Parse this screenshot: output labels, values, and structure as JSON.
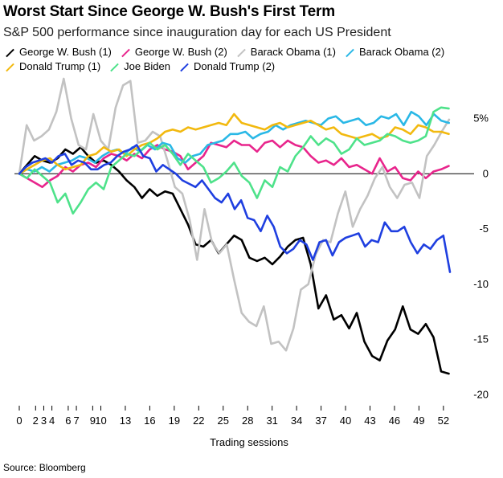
{
  "title": "Worst Start Since George W. Bush's First Term",
  "subtitle": "S&P 500 performance since inauguration day for each US President",
  "source": "Source: Bloomberg",
  "chart_data": {
    "type": "line",
    "xlabel": "Trading sessions",
    "ylabel": "",
    "xlim": [
      0,
      53
    ],
    "ylim": [
      -21,
      7
    ],
    "x_ticks": [
      0,
      2,
      3,
      4,
      6,
      7,
      9,
      10,
      13,
      16,
      19,
      22,
      25,
      28,
      31,
      34,
      37,
      40,
      43,
      46,
      49,
      52
    ],
    "y_ticks": [
      {
        "value": 5,
        "label": "5%"
      },
      {
        "value": 0,
        "label": "0"
      },
      {
        "value": -5,
        "label": "-5"
      },
      {
        "value": -10,
        "label": "-10"
      },
      {
        "value": -15,
        "label": "-15"
      },
      {
        "value": -20,
        "label": "-20"
      }
    ],
    "grid": "zero-line only",
    "legend": "top",
    "series": [
      {
        "name": "George W. Bush (1)",
        "color": "#000000",
        "values": [
          0,
          0.8,
          1.6,
          1.2,
          1.0,
          1.4,
          2.2,
          1.8,
          2.4,
          1.6,
          1.0,
          1.2,
          0.8,
          0.2,
          -0.6,
          -1.2,
          -2.2,
          -1.4,
          -2.0,
          -1.6,
          -1.8,
          -3.2,
          -4.6,
          -6.4,
          -6.6,
          -6.0,
          -7.2,
          -6.4,
          -5.6,
          -6.0,
          -7.6,
          -7.9,
          -7.6,
          -8.2,
          -7.5,
          -6.6,
          -6.0,
          -5.8,
          -8.2,
          -12.2,
          -11.0,
          -13.2,
          -12.8,
          -14.0,
          -12.6,
          -15.2,
          -16.5,
          -16.9,
          -15.1,
          -14.1,
          -12.0,
          -14.1,
          -14.5,
          -13.6,
          -14.8,
          -17.9,
          -18.1
        ]
      },
      {
        "name": "George W. Bush (2)",
        "color": "#e8258c",
        "values": [
          0,
          -0.4,
          -0.8,
          -1.2,
          -0.6,
          -0.2,
          0.6,
          0.2,
          0.8,
          1.0,
          0.6,
          1.4,
          1.8,
          1.6,
          1.2,
          1.8,
          1.4,
          2.2,
          2.6,
          2.2,
          2.0,
          1.6,
          0.4,
          1.0,
          1.6,
          2.8,
          2.6,
          2.4,
          3.0,
          2.6,
          2.6,
          2.0,
          2.8,
          3.0,
          2.4,
          3.0,
          2.6,
          2.4,
          1.6,
          1.0,
          1.2,
          0.8,
          1.4,
          0.6,
          0.8,
          0.4,
          0.0,
          1.4,
          0.2,
          0.6,
          -0.4,
          -0.6,
          0.2,
          -0.4,
          0.2,
          0.4,
          0.7
        ]
      },
      {
        "name": "Barack Obama (1)",
        "color": "#c2c2c2",
        "values": [
          0,
          4.4,
          3.0,
          3.4,
          4.0,
          5.6,
          8.6,
          5.0,
          2.6,
          2.2,
          5.4,
          3.0,
          2.2,
          6.0,
          8.0,
          8.4,
          2.8,
          3.0,
          3.8,
          3.4,
          1.2,
          -1.2,
          -1.8,
          -4.2,
          -7.8,
          -3.2,
          -6.2,
          -7.2,
          -6.4,
          -9.6,
          -12.6,
          -13.4,
          -13.8,
          -12.0,
          -15.4,
          -15.2,
          -16.0,
          -14.0,
          -10.5,
          -10.0,
          -7.3,
          -6.0,
          -6.2,
          -3.6,
          -1.6,
          -4.8,
          -3.2,
          -2.0,
          -0.4,
          0.6,
          -1.2,
          -2.2,
          -1.0,
          -0.8,
          -2.2,
          1.6,
          2.6,
          3.8,
          4.9
        ]
      },
      {
        "name": "Barack Obama (2)",
        "color": "#2ab8e6",
        "values": [
          0,
          0.4,
          0.2,
          0.6,
          0.2,
          0.8,
          1.0,
          1.2,
          1.6,
          1.4,
          1.0,
          1.6,
          2.0,
          2.2,
          1.8,
          2.4,
          2.0,
          2.6,
          2.2,
          2.8,
          2.6,
          1.4,
          1.0,
          1.6,
          1.8,
          2.6,
          2.8,
          3.0,
          3.6,
          3.6,
          3.8,
          3.2,
          3.6,
          3.8,
          4.4,
          4.0,
          4.4,
          4.6,
          4.8,
          4.6,
          4.4,
          5.0,
          5.2,
          4.6,
          4.8,
          5.0,
          4.4,
          4.6,
          5.2,
          5.0,
          5.4,
          4.4,
          5.6,
          5.2,
          4.4,
          5.4,
          4.8,
          4.6
        ]
      },
      {
        "name": "Donald Trump (1)",
        "color": "#f2b90f",
        "values": [
          0,
          0.4,
          0.8,
          1.2,
          1.4,
          0.8,
          0.4,
          0.6,
          0.8,
          1.6,
          1.8,
          2.4,
          2.0,
          2.2,
          1.6,
          2.2,
          2.6,
          2.8,
          3.2,
          3.8,
          4.0,
          3.8,
          4.2,
          4.0,
          4.2,
          4.4,
          4.6,
          4.4,
          5.4,
          4.6,
          4.4,
          4.2,
          4.0,
          4.4,
          4.6,
          4.2,
          4.4,
          4.6,
          4.8,
          4.4,
          4.0,
          4.2,
          3.6,
          3.4,
          3.2,
          3.4,
          3.6,
          3.2,
          3.4,
          4.2,
          4.0,
          3.6,
          4.4,
          4.2,
          3.8,
          3.8,
          3.6
        ]
      },
      {
        "name": "Joe Biden",
        "color": "#4ee28a",
        "values": [
          0,
          -0.4,
          0.4,
          -0.2,
          -0.8,
          -2.6,
          -1.8,
          -3.6,
          -2.6,
          -1.4,
          -0.8,
          -1.4,
          0.6,
          1.2,
          1.8,
          1.6,
          2.2,
          2.8,
          2.2,
          2.6,
          1.8,
          0.8,
          1.8,
          1.2,
          0.6,
          -0.8,
          -0.4,
          0.2,
          1.0,
          -0.2,
          -0.8,
          -2.2,
          -0.6,
          -1.2,
          0.6,
          0.2,
          1.6,
          2.4,
          3.4,
          2.6,
          3.2,
          2.8,
          1.8,
          2.2,
          3.2,
          2.6,
          2.8,
          3.0,
          3.6,
          3.4,
          3.0,
          2.8,
          3.0,
          3.4,
          5.6,
          6.0,
          5.9
        ]
      },
      {
        "name": "Donald Trump (2)",
        "color": "#1f3fe0",
        "values": [
          0,
          0.6,
          1.0,
          1.2,
          1.4,
          1.0,
          1.6,
          1.8,
          0.8,
          1.2,
          1.0,
          0.4,
          0.4,
          0.8,
          1.0,
          1.6,
          2.0,
          2.2,
          2.6,
          1.6,
          1.4,
          0.2,
          0.8,
          0.4,
          0.0,
          -0.6,
          -0.9,
          -1.2,
          -0.6,
          -1.4,
          -2.2,
          -2.6,
          -1.8,
          -3.2,
          -2.4,
          -4.0,
          -4.2,
          -5.2,
          -3.8,
          -4.8,
          -6.6,
          -7.2,
          -6.8,
          -6.0,
          -6.4,
          -7.8,
          -6.2,
          -6.0,
          -7.4,
          -6.2,
          -5.8,
          -5.6,
          -5.4,
          -6.6,
          -6.0,
          -6.2,
          -4.4,
          -5.2,
          -5.2,
          -4.8,
          -6.2,
          -7.2,
          -6.4,
          -6.8,
          -6.0,
          -5.6,
          -8.9
        ]
      }
    ]
  }
}
